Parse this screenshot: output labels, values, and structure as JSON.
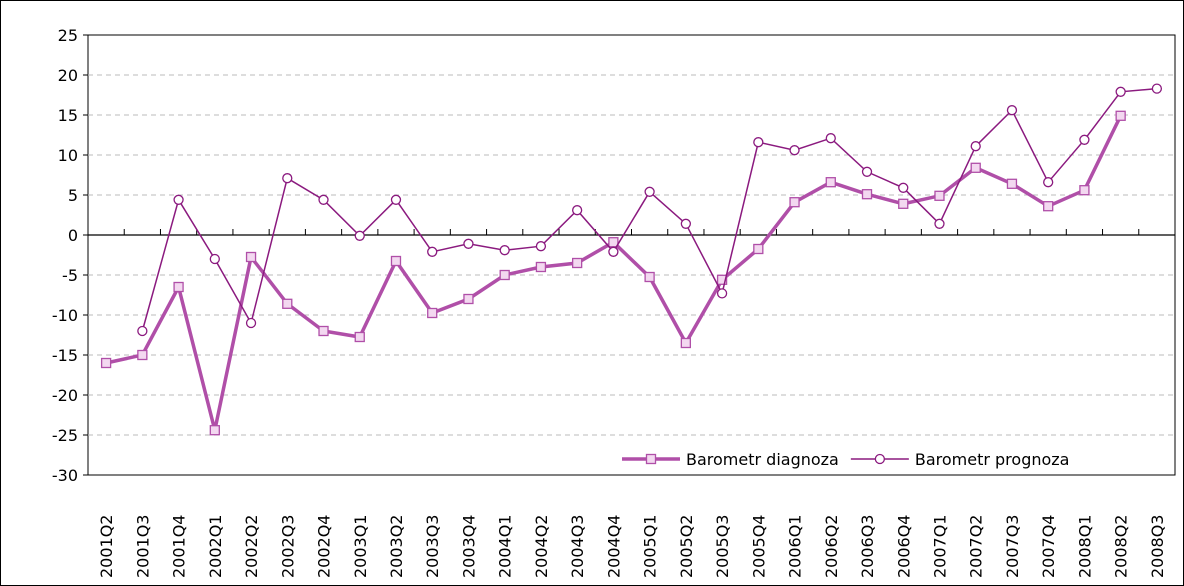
{
  "chart_data": {
    "type": "line",
    "categories": [
      "2001Q2",
      "2001Q3",
      "2001Q4",
      "2002Q1",
      "2002Q2",
      "2002Q3",
      "2002Q4",
      "2003Q1",
      "2003Q2",
      "2003Q3",
      "2003Q4",
      "2004Q1",
      "2004Q2",
      "2004Q3",
      "2004Q4",
      "2005Q1",
      "2005Q2",
      "2005Q3",
      "2005Q4",
      "2006Q1",
      "2006Q2",
      "2006Q3",
      "2006Q4",
      "2007Q1",
      "2007Q2",
      "2007Q3",
      "2007Q4",
      "2008Q1",
      "2008Q2",
      "2008Q3"
    ],
    "series": [
      {
        "name": "Barometr diagnoza",
        "color": "#b04fa8",
        "marker": "square",
        "values": [
          -16,
          -15,
          -6.5,
          -24.4,
          -2.75,
          -8.6,
          -12,
          -12.75,
          -3.25,
          -9.75,
          -8,
          -5,
          -4,
          -3.5,
          -0.9,
          -5.25,
          -13.5,
          -5.6,
          -1.75,
          4.1,
          6.6,
          5.1,
          3.9,
          4.9,
          8.4,
          6.4,
          3.6,
          5.6,
          14.9,
          null
        ]
      },
      {
        "name": "Barometr prognoza",
        "color": "#8b1a7f",
        "marker": "circle",
        "values": [
          null,
          -12,
          4.4,
          -3,
          -11,
          7.1,
          4.4,
          -0.1,
          4.4,
          -2.1,
          -1.1,
          -1.9,
          -1.4,
          3.1,
          -2.1,
          5.4,
          1.4,
          -7.3,
          11.6,
          10.6,
          12.1,
          7.9,
          5.9,
          1.4,
          11.1,
          15.6,
          6.6,
          11.9,
          17.9,
          18.3
        ]
      }
    ],
    "ylim": [
      -30,
      25
    ],
    "yticks": [
      -30,
      -25,
      -20,
      -15,
      -10,
      -5,
      0,
      5,
      10,
      15,
      20,
      25
    ],
    "grid": true,
    "legend": "lower right"
  }
}
